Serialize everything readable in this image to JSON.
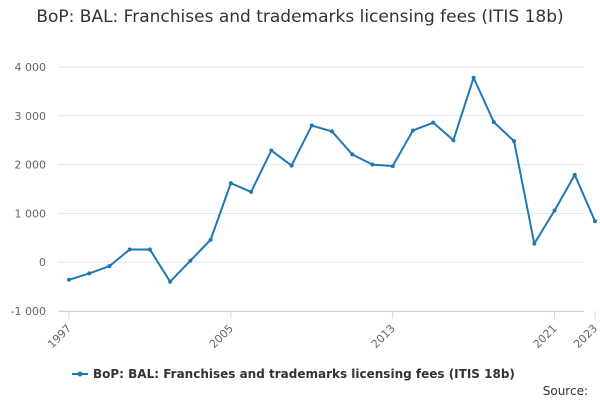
{
  "chart_data": {
    "type": "line",
    "title": "BoP: BAL: Franchises and trademarks licensing fees (ITIS 18b)",
    "xlabel": "",
    "ylabel": "",
    "x": [
      1997,
      1998,
      1999,
      2000,
      2001,
      2002,
      2003,
      2004,
      2005,
      2006,
      2007,
      2008,
      2009,
      2010,
      2011,
      2012,
      2013,
      2014,
      2015,
      2016,
      2017,
      2018,
      2019,
      2020,
      2021,
      2022,
      2023
    ],
    "series": [
      {
        "name": "BoP: BAL: Franchises and trademarks licensing fees (ITIS 18b)",
        "color": "#1f77b4",
        "values": [
          -360,
          -230,
          -80,
          260,
          260,
          -400,
          30,
          460,
          1620,
          1440,
          2290,
          1980,
          2800,
          2680,
          2210,
          2000,
          1970,
          2700,
          2860,
          2500,
          3780,
          2870,
          2480,
          380,
          1060,
          1790,
          840
        ]
      }
    ],
    "ylim": [
      -1000,
      4000
    ],
    "yticks": [
      -1000,
      0,
      1000,
      2000,
      3000,
      4000
    ],
    "ytick_labels": [
      "-1 000",
      "0",
      "1 000",
      "2 000",
      "3 000",
      "4 000"
    ],
    "xticks": [
      1997,
      2005,
      2013,
      2021,
      2023
    ],
    "xtick_labels": [
      "1997",
      "2005",
      "2013",
      "2021",
      "2023"
    ],
    "grid": true,
    "legend_position": "bottom",
    "credit": "Source:"
  }
}
